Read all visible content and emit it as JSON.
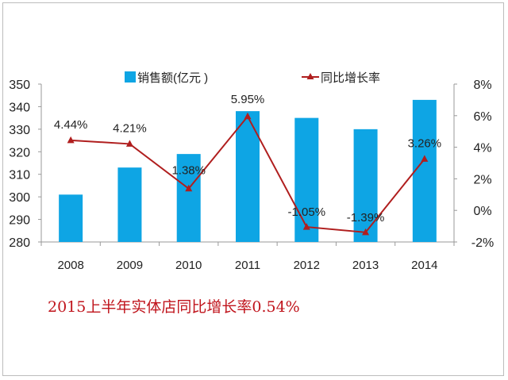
{
  "chart_data": {
    "type": "bar+line",
    "categories": [
      "2008",
      "2009",
      "2010",
      "2011",
      "2012",
      "2013",
      "2014"
    ],
    "series": [
      {
        "name": "销售额(亿元 )",
        "type": "bar",
        "axis": "left",
        "color": "#0ea5e4",
        "values": [
          301,
          313,
          319,
          338,
          335,
          330,
          343
        ]
      },
      {
        "name": "同比增长率",
        "type": "line",
        "axis": "right",
        "color": "#b01e1e",
        "marker": "triangle",
        "values": [
          4.44,
          4.21,
          1.38,
          5.95,
          -1.05,
          -1.39,
          3.26
        ],
        "labels": [
          "4.44%",
          "4.21%",
          "1.38%",
          "5.95%",
          "-1.05%",
          "-1.39%",
          "3.26%"
        ]
      }
    ],
    "left_axis": {
      "ylim": [
        280,
        350
      ],
      "ticks": [
        "280",
        "290",
        "300",
        "310",
        "320",
        "330",
        "340",
        "350"
      ]
    },
    "right_axis": {
      "ylim": [
        -2,
        8
      ],
      "ticks": [
        "-2%",
        "0%",
        "2%",
        "4%",
        "6%",
        "8%"
      ]
    },
    "legend_position": "top",
    "grid": false
  },
  "note": "2015上半年实体店同比增长率0.54%"
}
